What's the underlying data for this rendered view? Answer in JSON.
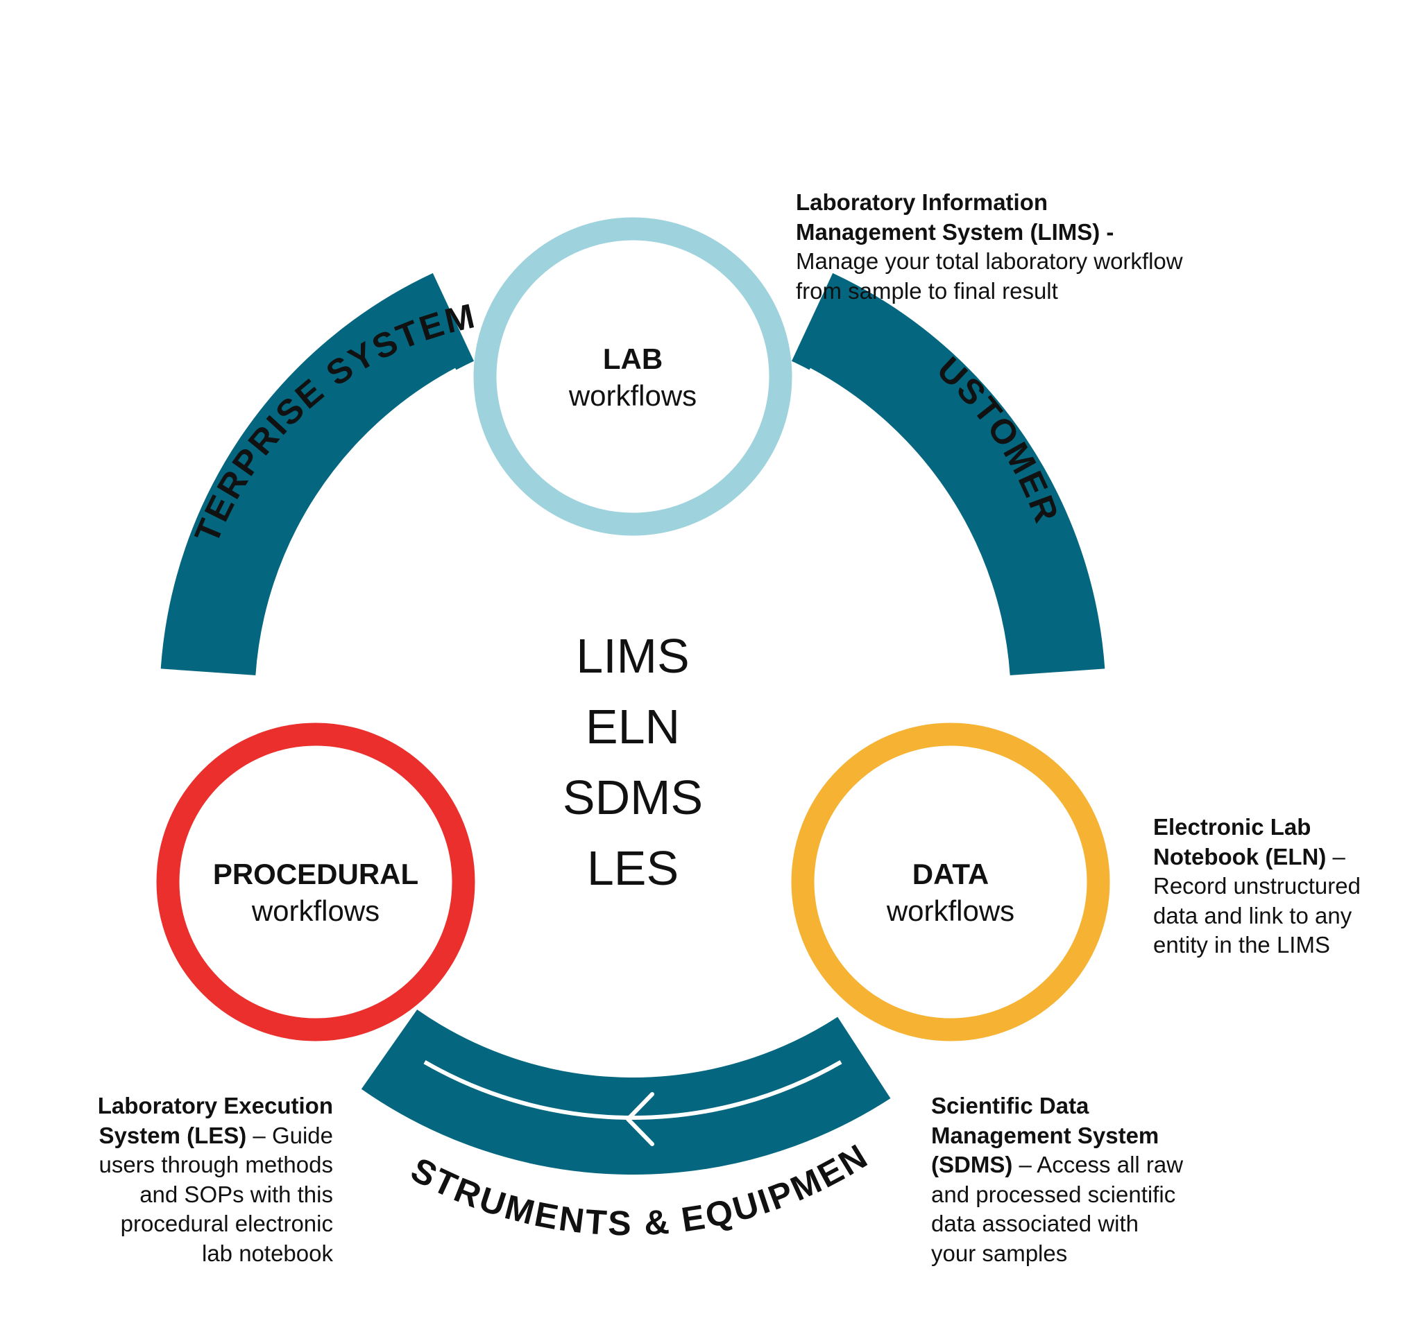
{
  "colors": {
    "band": "#04677f",
    "background": "#ffffff",
    "lab_ring": "#9ed3de",
    "procedural_ring": "#ea2f2c",
    "data_ring": "#f5b233"
  },
  "arc_labels": {
    "top_left": "ENTERPRISE SYSTEMS",
    "top_right": "CUSTOMERS",
    "bottom": "INSTRUMENTS & EQUIPMENT"
  },
  "center_systems": [
    "LIMS",
    "ELN",
    "SDMS",
    "LES"
  ],
  "nodes": {
    "lab": {
      "title": "LAB",
      "subtitle": "workflows"
    },
    "procedural": {
      "title": "PROCEDURAL",
      "subtitle": "workflows"
    },
    "data": {
      "title": "DATA",
      "subtitle": "workflows"
    }
  },
  "descriptions": {
    "lims": {
      "lines": [
        {
          "bold": "Laboratory Information",
          "text": ""
        },
        {
          "bold": "Management System (LIMS) -",
          "text": ""
        },
        {
          "bold": "",
          "text": "Manage your total laboratory workflow"
        },
        {
          "bold": "",
          "text": "from sample to final result"
        }
      ]
    },
    "eln": {
      "lines": [
        {
          "bold": "Electronic Lab",
          "text": ""
        },
        {
          "bold": "Notebook (ELN)",
          "text": " –"
        },
        {
          "bold": "",
          "text": "Record unstructured"
        },
        {
          "bold": "",
          "text": "data and link to any"
        },
        {
          "bold": "",
          "text": "entity in the LIMS"
        }
      ]
    },
    "sdms": {
      "lines": [
        {
          "bold": "Scientific Data",
          "text": ""
        },
        {
          "bold": "Management System",
          "text": ""
        },
        {
          "bold": "(SDMS)",
          "text": " – Access all raw"
        },
        {
          "bold": "",
          "text": "and processed scientific"
        },
        {
          "bold": "",
          "text": "data associated with"
        },
        {
          "bold": "",
          "text": "your samples"
        }
      ]
    },
    "les": {
      "lines": [
        {
          "bold": "Laboratory Execution",
          "text": ""
        },
        {
          "bold": "System (LES)",
          "text": " – Guide"
        },
        {
          "bold": "",
          "text": "users through methods"
        },
        {
          "bold": "",
          "text": "and SOPs with this"
        },
        {
          "bold": "",
          "text": "procedural electronic"
        },
        {
          "bold": "",
          "text": "lab notebook"
        }
      ]
    }
  }
}
